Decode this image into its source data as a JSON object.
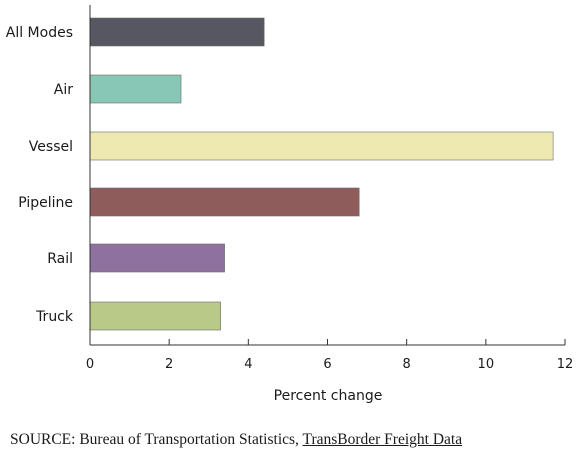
{
  "chart_data": {
    "type": "bar",
    "orientation": "horizontal",
    "categories": [
      "All Modes",
      "Air",
      "Vessel",
      "Pipeline",
      "Rail",
      "Truck"
    ],
    "values": [
      4.4,
      2.3,
      11.7,
      6.8,
      3.4,
      3.3
    ],
    "colors": [
      "#565760",
      "#88c6b5",
      "#eee9b1",
      "#8e5c5b",
      "#8f71a0",
      "#b8c988"
    ],
    "xlabel": "Percent change",
    "ylabel": "",
    "title": "",
    "xlim": [
      0,
      12
    ],
    "xticks": [
      0,
      2,
      4,
      6,
      8,
      10,
      12
    ],
    "grid": false,
    "legend": "none"
  },
  "source": {
    "prefix": "SOURCE: Bureau of Transportation Statistics, ",
    "link_text": "TransBorder Freight Data"
  }
}
